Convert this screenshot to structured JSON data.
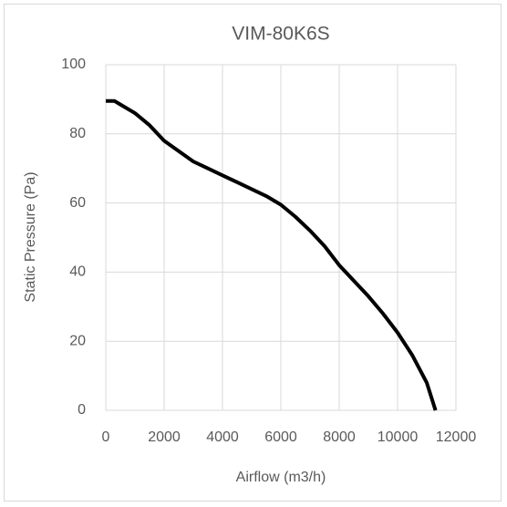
{
  "chart_data": {
    "type": "line",
    "title": "VIM-80K6S",
    "x_label": "Airflow (m3/h)",
    "y_label": "Static Pressure (Pa)",
    "x": [
      0,
      300,
      600,
      1000,
      1500,
      2000,
      2500,
      3000,
      3500,
      4000,
      4500,
      5000,
      5500,
      6000,
      6500,
      7000,
      7500,
      8000,
      8500,
      9000,
      9500,
      10000,
      10500,
      11000,
      11300
    ],
    "series": [
      {
        "name": "VIM-80K6S",
        "color": "#000000",
        "values": [
          89.5,
          89.5,
          88,
          86,
          82.5,
          78,
          75,
          72,
          70,
          68,
          66,
          64,
          62,
          59.5,
          56,
          52,
          47.5,
          42,
          37.5,
          33,
          28,
          22.5,
          16,
          8,
          0
        ]
      }
    ],
    "xlim": [
      0,
      12000
    ],
    "xticks": [
      0,
      2000,
      4000,
      6000,
      8000,
      10000,
      12000
    ],
    "ylim": [
      0,
      100
    ],
    "yticks": [
      0,
      20,
      40,
      60,
      80,
      100
    ],
    "grid": true
  }
}
